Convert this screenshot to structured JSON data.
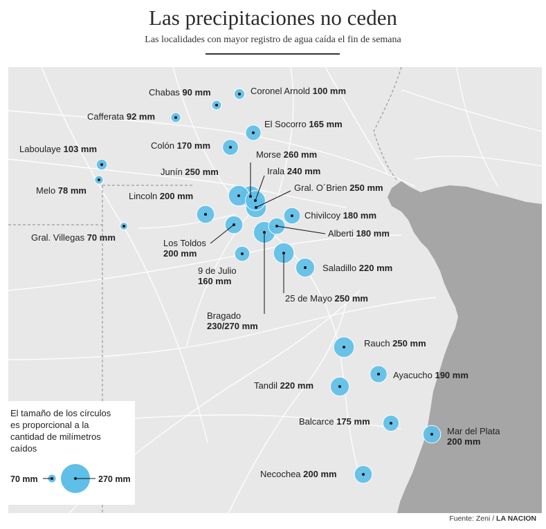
{
  "title": "Las precipitaciones no ceden",
  "subtitle": "Las localidades con mayor registro de agua caída el fin de semana",
  "source": {
    "prefix": "Fuente: Zeni /",
    "brand": "LA NACION"
  },
  "colors": {
    "land": "#e8e8e8",
    "sea": "#a6a6a6",
    "bubble": "#5fbfe8",
    "roads": "#ffffff",
    "label": "#222222"
  },
  "legend": {
    "text": [
      "El tamaño de los círculos",
      "es proporcional a la",
      "cantidad de milímetros",
      "caídos"
    ],
    "min_label": "70 mm",
    "max_label": "270 mm"
  },
  "locations": [
    {
      "name": "Coronel Arnold",
      "value": "100 mm",
      "mm": 100
    },
    {
      "name": "Chabas",
      "value": "90 mm",
      "mm": 90
    },
    {
      "name": "Cafferata",
      "value": "92 mm",
      "mm": 92
    },
    {
      "name": "El Socorro",
      "value": "165 mm",
      "mm": 165
    },
    {
      "name": "Colón",
      "value": "170 mm",
      "mm": 170
    },
    {
      "name": "Laboulaye",
      "value": "103 mm",
      "mm": 103
    },
    {
      "name": "Melo",
      "value": "78 mm",
      "mm": 78
    },
    {
      "name": "Morse",
      "value": "260 mm",
      "mm": 260
    },
    {
      "name": "Irala",
      "value": "240 mm",
      "mm": 240
    },
    {
      "name": "Junín",
      "value": "250 mm",
      "mm": 250
    },
    {
      "name": "Gral. O´Brien",
      "value": "250 mm",
      "mm": 250
    },
    {
      "name": "Lincoln",
      "value": "200 mm",
      "mm": 200
    },
    {
      "name": "Chivilcoy",
      "value": "180 mm",
      "mm": 180
    },
    {
      "name": "Gral. Villegas",
      "value": "70 mm",
      "mm": 70
    },
    {
      "name": "Alberti",
      "value": "180 mm",
      "mm": 180
    },
    {
      "name": "Los Toldos",
      "value": "200 mm",
      "mm": 200
    },
    {
      "name": "9 de Julio",
      "value": "160 mm",
      "mm": 160
    },
    {
      "name": "Saladillo",
      "value": "220 mm",
      "mm": 220
    },
    {
      "name": "25 de Mayo",
      "value": "250 mm",
      "mm": 250
    },
    {
      "name": "Bragado",
      "value": "230/270 mm",
      "mm": 270
    },
    {
      "name": "Rauch",
      "value": "250 mm",
      "mm": 250
    },
    {
      "name": "Ayacucho",
      "value": "190 mm",
      "mm": 190
    },
    {
      "name": "Tandil",
      "value": "220 mm",
      "mm": 220
    },
    {
      "name": "Balcarce",
      "value": "175 mm",
      "mm": 175
    },
    {
      "name": "Mar del Plata",
      "value": "200 mm",
      "mm": 200
    },
    {
      "name": "Necochea",
      "value": "200 mm",
      "mm": 200
    }
  ]
}
